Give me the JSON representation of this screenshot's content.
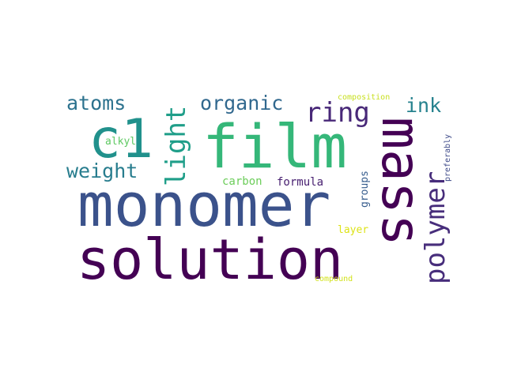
{
  "words": [
    {
      "text": "monomer",
      "color": "#3b528b"
    },
    {
      "text": "solution",
      "color": "#440154"
    },
    {
      "text": "film",
      "color": "#35b779"
    },
    {
      "text": "mass",
      "color": "#440154"
    },
    {
      "text": "c1",
      "color": "#21918c"
    },
    {
      "text": "polymer",
      "color": "#472d7b"
    },
    {
      "text": "light",
      "color": "#1f9e89"
    },
    {
      "text": "ring",
      "color": "#482878"
    },
    {
      "text": "organic",
      "color": "#31688e"
    },
    {
      "text": "atoms",
      "color": "#2c728e"
    },
    {
      "text": "weight",
      "color": "#287d8e"
    },
    {
      "text": "ink",
      "color": "#26828e"
    },
    {
      "text": "alkyl",
      "color": "#5ec962"
    },
    {
      "text": "carbon",
      "color": "#6ccd5a"
    },
    {
      "text": "formula",
      "color": "#482071"
    },
    {
      "text": "groups",
      "color": "#365c8d"
    },
    {
      "text": "layer",
      "color": "#dde318"
    },
    {
      "text": "compound",
      "color": "#d2e21b"
    },
    {
      "text": "composition",
      "color": "#c8e020"
    },
    {
      "text": "preferably",
      "color": "#3e4a89"
    }
  ]
}
